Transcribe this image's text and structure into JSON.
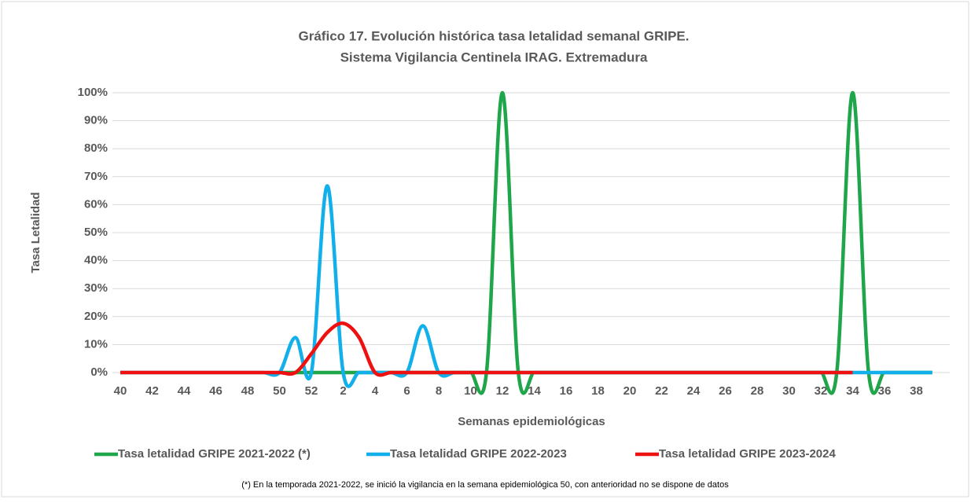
{
  "chart_data": {
    "type": "line",
    "title": "Gráfico 17. Evolución histórica tasa letalidad semanal GRIPE.",
    "subtitle": "Sistema  Vigilancia Centinela IRAG. Extremadura",
    "x_label": "Semanas epidemiológicas",
    "y_label": "Tasa Letalidad",
    "footnote": "(*) En la temporada 2021-2022, se inició la vigilancia en la semana epidemiológica 50, con anterioridad no se dispone de datos",
    "categories": [
      40,
      null,
      42,
      null,
      44,
      null,
      46,
      null,
      48,
      null,
      50,
      null,
      52,
      null,
      2,
      null,
      4,
      null,
      6,
      null,
      8,
      null,
      10,
      null,
      12,
      null,
      14,
      null,
      16,
      null,
      18,
      null,
      20,
      null,
      22,
      null,
      24,
      null,
      26,
      null,
      28,
      null,
      30,
      null,
      32,
      null,
      34,
      null,
      36,
      null,
      38,
      null
    ],
    "ylim": [
      0,
      100
    ],
    "yticks": [
      {
        "value": 0,
        "label": "0%"
      },
      {
        "value": 10,
        "label": "10%"
      },
      {
        "value": 20,
        "label": "20%"
      },
      {
        "value": 30,
        "label": "30%"
      },
      {
        "value": 40,
        "label": "40%"
      },
      {
        "value": 50,
        "label": "50%"
      },
      {
        "value": 60,
        "label": "60%"
      },
      {
        "value": 70,
        "label": "70%"
      },
      {
        "value": 80,
        "label": "80%"
      },
      {
        "value": 90,
        "label": "90%"
      },
      {
        "value": 100,
        "label": "100%"
      }
    ],
    "grid": true,
    "legend": "bottom",
    "series": [
      {
        "name": "Tasa letalidad GRIPE 2021-2022 (*)",
        "color": "#1fa64a",
        "values": [
          null,
          null,
          null,
          null,
          null,
          null,
          null,
          null,
          null,
          null,
          0,
          0,
          0,
          0,
          0,
          0,
          0,
          0,
          0,
          0,
          0,
          0,
          0,
          0,
          100,
          0,
          0,
          0,
          0,
          0,
          0,
          0,
          0,
          0,
          0,
          0,
          0,
          0,
          0,
          0,
          0,
          0,
          0,
          0,
          0,
          0,
          100,
          0,
          0,
          0,
          0,
          0
        ]
      },
      {
        "name": "Tasa letalidad GRIPE 2022-2023",
        "color": "#12b0ea",
        "values": [
          0,
          0,
          0,
          0,
          0,
          0,
          0,
          0,
          0,
          0,
          0,
          12.5,
          0,
          66.7,
          0,
          0,
          0,
          0,
          0,
          16.7,
          0,
          0,
          0,
          0,
          0,
          0,
          0,
          0,
          0,
          0,
          0,
          0,
          0,
          0,
          0,
          0,
          0,
          0,
          0,
          0,
          0,
          0,
          0,
          0,
          0,
          0,
          0,
          0,
          0,
          0,
          0,
          0
        ]
      },
      {
        "name": "Tasa letalidad GRIPE 2023-2024",
        "color": "#ee1111",
        "values": [
          0,
          0,
          0,
          0,
          0,
          0,
          0,
          0,
          0,
          0,
          0,
          0,
          6.7,
          14.3,
          17.6,
          12.5,
          0,
          0,
          0,
          0,
          0,
          0,
          0,
          0,
          0,
          0,
          0,
          0,
          0,
          0,
          0,
          0,
          0,
          0,
          0,
          0,
          0,
          0,
          0,
          0,
          0,
          0,
          0,
          0,
          0,
          0,
          0,
          null,
          null,
          null,
          null,
          null
        ]
      }
    ]
  }
}
